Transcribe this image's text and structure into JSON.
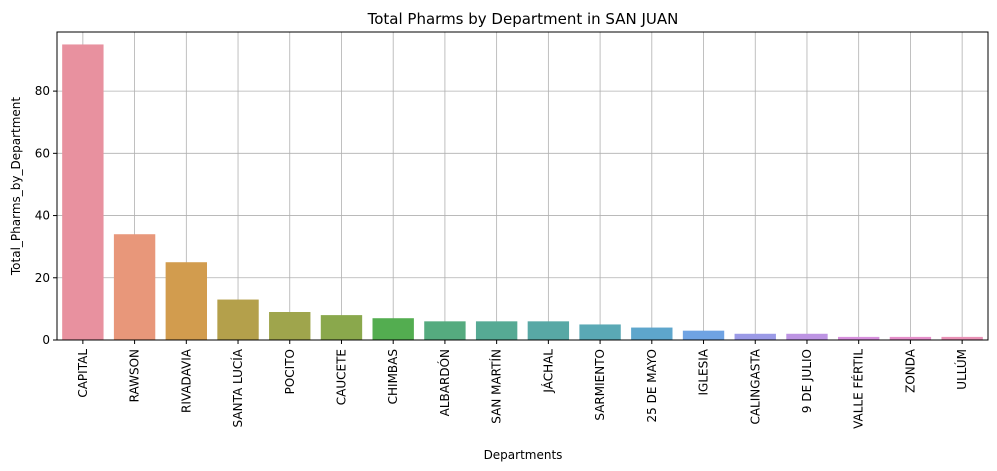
{
  "chart_data": {
    "type": "bar",
    "title": "Total Pharms by Department in SAN JUAN",
    "xlabel": "Departments",
    "ylabel": "Total_Pharms_by_Department",
    "ylim": [
      0,
      99
    ],
    "yticks": [
      0,
      20,
      40,
      60,
      80
    ],
    "grid": true,
    "categories": [
      "CAPITAL",
      "RAWSON",
      "RIVADAVIA",
      "SANTA LUCÍA",
      "POCITO",
      "CAUCETE",
      "CHIMBAS",
      "ALBARDÓN",
      "SAN MARTÍN",
      "JÁCHAL",
      "SARMIENTO",
      "25 DE MAYO",
      "IGLESIA",
      "CALINGASTA",
      "9 DE JULIO",
      "VALLE FÉRTIL",
      "ZONDA",
      "ULLÚM"
    ],
    "values": [
      95,
      34,
      25,
      13,
      9,
      8,
      7,
      6,
      6,
      6,
      5,
      4,
      3,
      2,
      2,
      1,
      1,
      1
    ],
    "colors": [
      "#e8919f",
      "#e8977a",
      "#d29c4e",
      "#b4a04b",
      "#9fa54c",
      "#8aa84c",
      "#53ad50",
      "#55ab7f",
      "#56aa94",
      "#58a8a5",
      "#5aa9b5",
      "#5ea6cc",
      "#6fa3e3",
      "#9b9ae6",
      "#bd94e3",
      "#d790dd",
      "#e58fca",
      "#e991b5"
    ]
  }
}
